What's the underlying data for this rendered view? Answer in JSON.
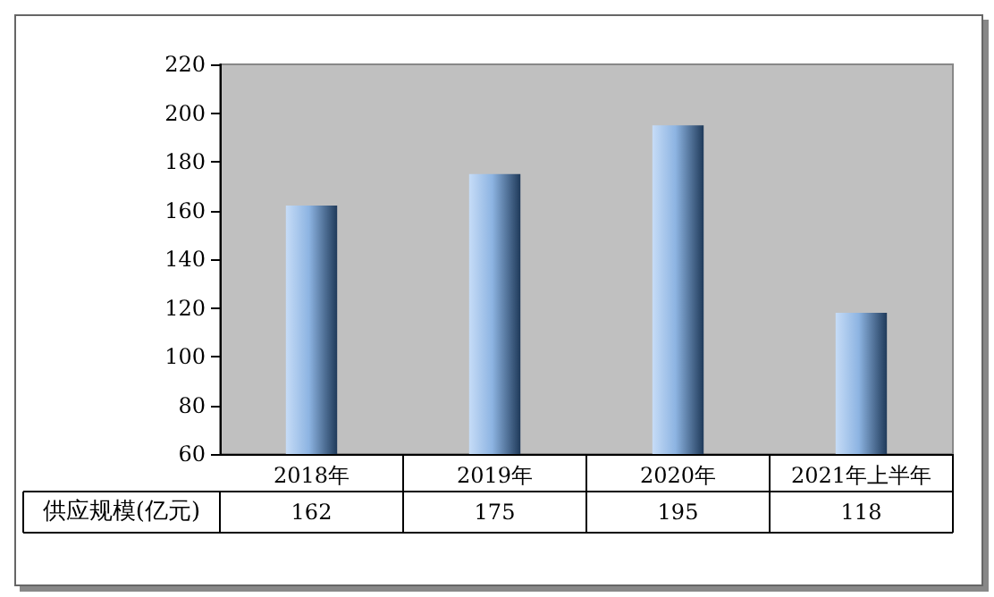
{
  "chart_data": {
    "type": "bar",
    "categories": [
      "2018年",
      "2019年",
      "2020年",
      "2021年上半年"
    ],
    "series": [
      {
        "name": "供应规模(亿元)",
        "color": "#8db4e2",
        "values": [
          162,
          175,
          195,
          118
        ]
      }
    ],
    "ylim": [
      60,
      220
    ],
    "yticks": [
      60,
      80,
      100,
      120,
      140,
      160,
      180,
      200,
      220
    ],
    "data_labels": true,
    "legend": "bottom left"
  }
}
